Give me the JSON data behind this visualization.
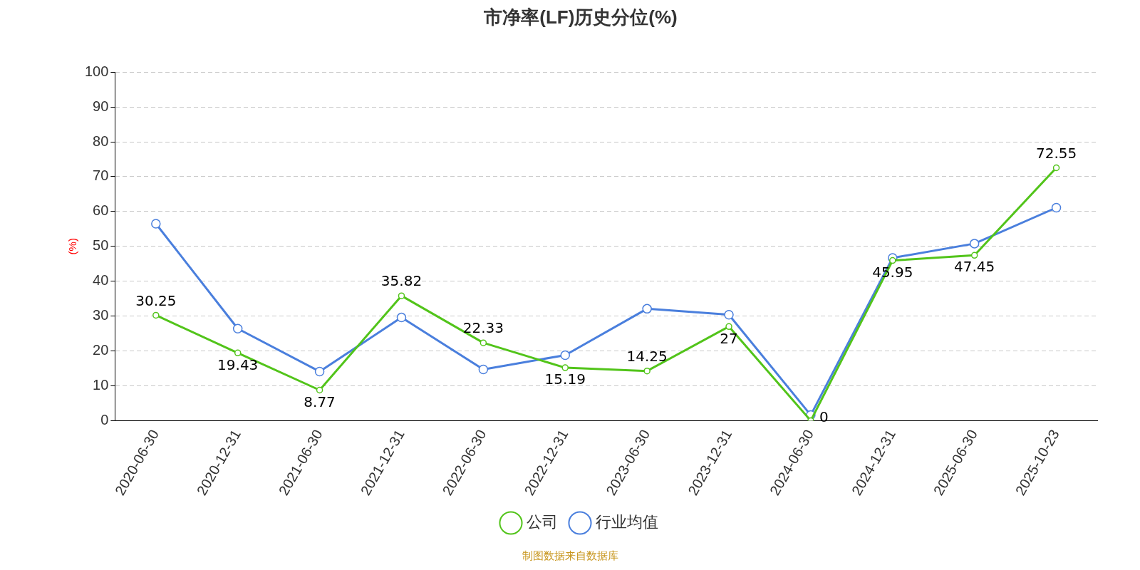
{
  "chart_data": {
    "type": "line",
    "title": "市净率(LF)历史分位(%)",
    "ylabel": "(%)",
    "categories": [
      "2020-06-30",
      "2020-12-31",
      "2021-06-30",
      "2021-12-31",
      "2022-06-30",
      "2022-12-31",
      "2023-06-30",
      "2023-12-31",
      "2024-06-30",
      "2024-12-31",
      "2025-06-30",
      "2025-10-23"
    ],
    "series": [
      {
        "name": "公司",
        "color": "#52c41a",
        "values": [
          30.25,
          19.43,
          8.77,
          35.82,
          22.33,
          15.19,
          14.25,
          27,
          0,
          45.95,
          47.45,
          72.55
        ],
        "value_labels": [
          "30.25",
          "19.43",
          "8.77",
          "35.82",
          "22.33",
          "15.19",
          "14.25",
          "27",
          "0",
          "45.95",
          "47.45",
          "72.55"
        ]
      },
      {
        "name": "行业均值",
        "color": "#4a7fdd",
        "values": [
          56.5,
          26.4,
          14.1,
          29.6,
          14.7,
          18.8,
          32.1,
          30.4,
          1.6,
          46.7,
          50.8,
          61.1
        ]
      }
    ],
    "ylim": [
      0,
      100
    ],
    "yticks": [
      0,
      10,
      20,
      30,
      40,
      50,
      60,
      70,
      80,
      90,
      100
    ],
    "grid": "y",
    "line_style": "solid",
    "marker": "circle",
    "legend": "bottom",
    "annotations": [
      "制图数据来自数据库"
    ]
  }
}
